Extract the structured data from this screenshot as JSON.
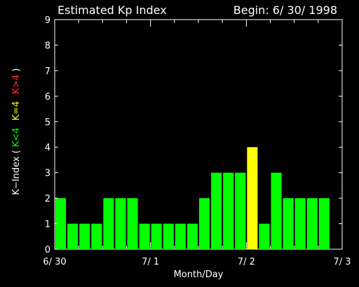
{
  "chart_data": {
    "type": "bar",
    "title": "Estimated Kp Index",
    "begin_label": "Begin: 6/ 30/ 1998",
    "xlabel": "Month/Day",
    "ylabel_prefix": "K−Index ( ",
    "ylabel_lt": "K<4",
    "ylabel_eq": "K=4",
    "ylabel_gt": "K>4",
    "ylabel_suffix": " )",
    "ylim": [
      0,
      9
    ],
    "yticks": [
      "0",
      "1",
      "2",
      "3",
      "4",
      "5",
      "6",
      "7",
      "8",
      "9"
    ],
    "xticks": [
      "6/ 30",
      "7/ 1",
      "7/ 2",
      "7/ 3"
    ],
    "interval_hours": 3,
    "days_span": 3,
    "values": [
      2,
      1,
      1,
      1,
      2,
      2,
      2,
      1,
      1,
      1,
      1,
      1,
      2,
      3,
      3,
      3,
      4,
      1,
      3,
      2,
      2,
      2,
      2
    ],
    "colors": {
      "lt4": "#00ff00",
      "eq4": "#ffff00",
      "gt4": "#ff0000",
      "axis": "#ffffff",
      "background": "#000000"
    },
    "grid": false
  }
}
